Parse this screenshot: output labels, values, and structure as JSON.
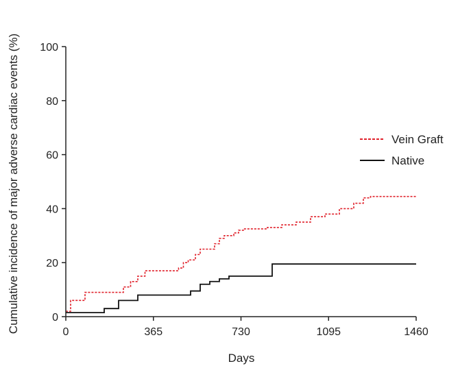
{
  "chart_data": {
    "type": "line",
    "title": "",
    "xlabel": "Days",
    "ylabel": "Cumulative incidence of major adverse cardiac events (%)",
    "xlim": [
      0,
      1460
    ],
    "ylim": [
      0,
      100
    ],
    "x_ticks": [
      "0",
      "365",
      "730",
      "1095",
      "1460"
    ],
    "y_ticks": [
      "0",
      "20",
      "40",
      "60",
      "80",
      "100"
    ],
    "x_tick_values": [
      0,
      365,
      730,
      1095,
      1460
    ],
    "y_tick_values": [
      0,
      20,
      40,
      60,
      80,
      100
    ],
    "grid": false,
    "legend_position": "right",
    "series": [
      {
        "name": "Vein Graft",
        "color": "#e0202a",
        "line_style": "dashed",
        "step": true,
        "x": [
          0,
          20,
          80,
          240,
          270,
          300,
          330,
          470,
          490,
          510,
          540,
          560,
          620,
          640,
          660,
          700,
          720,
          740,
          840,
          900,
          960,
          1020,
          1080,
          1140,
          1200,
          1240,
          1270,
          1460
        ],
        "y": [
          2,
          6,
          9,
          11,
          13,
          15,
          17,
          18,
          20,
          21,
          23,
          25,
          27,
          29,
          30,
          31,
          32,
          32.5,
          33,
          34,
          35,
          37,
          38,
          40,
          42,
          44,
          44.5,
          44.5
        ]
      },
      {
        "name": "Native",
        "color": "#111111",
        "line_style": "solid",
        "step": true,
        "x": [
          0,
          160,
          220,
          300,
          520,
          560,
          600,
          640,
          680,
          860,
          1460
        ],
        "y": [
          1.5,
          3,
          6,
          8,
          9.5,
          12,
          13,
          14,
          15,
          19.5,
          19.5
        ]
      }
    ]
  }
}
